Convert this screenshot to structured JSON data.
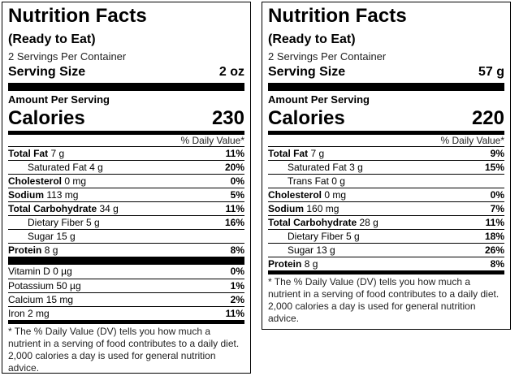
{
  "labels": [
    {
      "title": "Nutrition Facts",
      "subtitle": "(Ready to Eat)",
      "servings_per_container": "2 Servings Per Container",
      "serving_size_label": "Serving Size",
      "serving_size_value": "2 oz",
      "amount_per_serving": "Amount Per Serving",
      "calories_label": "Calories",
      "calories_value": "230",
      "daily_value_header": "% Daily Value*",
      "nutrients": [
        {
          "name": "Total Fat",
          "amount": "7 g",
          "dv": "11%",
          "bold": true,
          "indent": false
        },
        {
          "name": "Saturated Fat",
          "amount": "4 g",
          "dv": "20%",
          "bold": false,
          "indent": true
        },
        {
          "name": "Cholesterol",
          "amount": "0 mg",
          "dv": "0%",
          "bold": true,
          "indent": false
        },
        {
          "name": "Sodium",
          "amount": "113 mg",
          "dv": "5%",
          "bold": true,
          "indent": false
        },
        {
          "name": "Total Carbohydrate",
          "amount": "34 g",
          "dv": "11%",
          "bold": true,
          "indent": false
        },
        {
          "name": "Dietary Fiber",
          "amount": "5 g",
          "dv": "16%",
          "bold": false,
          "indent": true
        },
        {
          "name": "Sugar",
          "amount": "15 g",
          "dv": "",
          "bold": false,
          "indent": true
        },
        {
          "name": "Protein",
          "amount": "8 g",
          "dv": "8%",
          "bold": true,
          "indent": false
        }
      ],
      "vitamins": [
        {
          "name": "Vitamin D",
          "amount": "0 µg",
          "dv": "0%"
        },
        {
          "name": "Potassium",
          "amount": "50 µg",
          "dv": "1%"
        },
        {
          "name": "Calcium",
          "amount": "15 mg",
          "dv": "2%"
        },
        {
          "name": "Iron",
          "amount": "2 mg",
          "dv": "11%"
        }
      ],
      "footnote": "* The % Daily Value (DV) tells you how much a nutrient in a serving of food contributes to a daily diet. 2,000 calories a day is used for general nutrition advice."
    },
    {
      "title": "Nutrition Facts",
      "subtitle": "(Ready to Eat)",
      "servings_per_container": "2 Servings Per Container",
      "serving_size_label": "Serving Size",
      "serving_size_value": "57 g",
      "amount_per_serving": "Amount Per Serving",
      "calories_label": "Calories",
      "calories_value": "220",
      "daily_value_header": "% Daily Value*",
      "nutrients": [
        {
          "name": "Total Fat",
          "amount": "7 g",
          "dv": "9%",
          "bold": true,
          "indent": false
        },
        {
          "name": "Saturated Fat",
          "amount": "3 g",
          "dv": "15%",
          "bold": false,
          "indent": true
        },
        {
          "name": "Trans Fat",
          "amount": "0 g",
          "dv": "",
          "bold": false,
          "indent": true
        },
        {
          "name": "Cholesterol",
          "amount": "0 mg",
          "dv": "0%",
          "bold": true,
          "indent": false
        },
        {
          "name": "Sodium",
          "amount": "160 mg",
          "dv": "7%",
          "bold": true,
          "indent": false
        },
        {
          "name": "Total Carbohydrate",
          "amount": "28 g",
          "dv": "11%",
          "bold": true,
          "indent": false
        },
        {
          "name": "Dietary Fiber",
          "amount": "5 g",
          "dv": "18%",
          "bold": false,
          "indent": true
        },
        {
          "name": "Sugar",
          "amount": "13 g",
          "dv": "26%",
          "bold": false,
          "indent": true
        },
        {
          "name": "Protein",
          "amount": "8 g",
          "dv": "8%",
          "bold": true,
          "indent": false
        }
      ],
      "vitamins": [],
      "footnote": "* The % Daily Value (DV) tells you how much a nutrient in a serving of food contributes to a daily diet. 2,000 calories a day is used for general nutrition advice."
    }
  ]
}
